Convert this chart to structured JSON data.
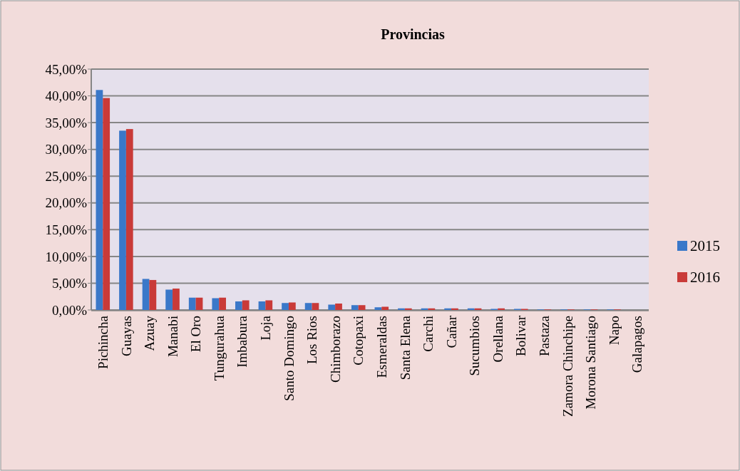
{
  "chart_data": {
    "type": "bar",
    "title": "Provincias",
    "categories": [
      "Pichincha",
      "Guayas",
      "Azuay",
      "Manabi",
      "El Oro",
      "Tungurahua",
      "Imbabura",
      "Loja",
      "Santo Domingo",
      "Los Rios",
      "Chimborazo",
      "Cotopaxi",
      "Esmeraldas",
      "Santa Elena",
      "Carchi",
      "Cañar",
      "Sucumbios",
      "Orellana",
      "Bolivar",
      "Pastaza",
      "Zamora Chinchipe",
      "Morona Santiago",
      "Napo",
      "Galapagos"
    ],
    "series": [
      {
        "name": "2015",
        "color": "#3a78c9",
        "values": [
          41.1,
          33.5,
          5.8,
          3.8,
          2.3,
          2.2,
          1.6,
          1.6,
          1.3,
          1.3,
          1.0,
          0.9,
          0.5,
          0.3,
          0.3,
          0.3,
          0.3,
          0.2,
          0.2,
          0.1,
          0.1,
          0.1,
          0.1,
          0.0
        ]
      },
      {
        "name": "2016",
        "color": "#c93a38",
        "values": [
          39.6,
          33.8,
          5.6,
          4.0,
          2.3,
          2.3,
          1.8,
          1.8,
          1.4,
          1.3,
          1.2,
          0.9,
          0.6,
          0.3,
          0.3,
          0.3,
          0.3,
          0.3,
          0.2,
          0.1,
          0.1,
          0.1,
          0.1,
          0.0
        ]
      }
    ],
    "ylim": [
      0,
      45
    ],
    "yticks": [
      {
        "value": 0,
        "label": "0,00%"
      },
      {
        "value": 5,
        "label": "5,00%"
      },
      {
        "value": 10,
        "label": "10,00%"
      },
      {
        "value": 15,
        "label": "15,00%"
      },
      {
        "value": 20,
        "label": "20,00%"
      },
      {
        "value": 25,
        "label": "25,00%"
      },
      {
        "value": 30,
        "label": "30,00%"
      },
      {
        "value": 35,
        "label": "35,00%"
      },
      {
        "value": 40,
        "label": "40,00%"
      },
      {
        "value": 45,
        "label": "45,00%"
      }
    ],
    "grid": "y",
    "legend": "right"
  }
}
